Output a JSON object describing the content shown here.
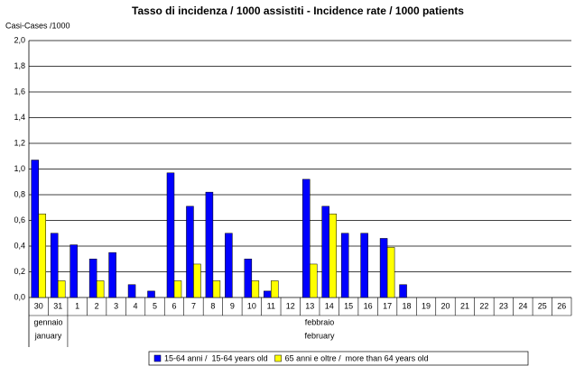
{
  "chart_data": {
    "type": "bar",
    "title": "Tasso di incidenza / 1000 assistiti - Incidence rate / 1000 patients",
    "y_label": "Casi-Cases /1000",
    "categories": [
      "30",
      "31",
      "1",
      "2",
      "3",
      "4",
      "5",
      "6",
      "7",
      "8",
      "9",
      "10",
      "11",
      "12",
      "13",
      "14",
      "15",
      "16",
      "17",
      "18",
      "19",
      "20",
      "21",
      "22",
      "23",
      "24",
      "25",
      "26"
    ],
    "month_labels": [
      [
        "gennaio",
        "january"
      ],
      [
        "febbraio",
        "february"
      ]
    ],
    "series": [
      {
        "name": "15-64 anni /  15-64 years old",
        "color": "#0000ff",
        "values": [
          1.07,
          0.5,
          0.41,
          0.3,
          0.35,
          0.1,
          0.05,
          0.97,
          0.71,
          0.82,
          0.5,
          0.3,
          0.05,
          0,
          0.92,
          0.71,
          0.5,
          0.5,
          0.46,
          0.1,
          0,
          0,
          0,
          0,
          0,
          0,
          0,
          0
        ]
      },
      {
        "name": "65 anni e oltre /  more than 64 years old",
        "color": "#ffff00",
        "values": [
          0.65,
          0.13,
          0,
          0.13,
          0,
          0,
          0,
          0.13,
          0.26,
          0.13,
          0,
          0.13,
          0.13,
          0,
          0.26,
          0.65,
          0,
          0,
          0.39,
          0,
          0,
          0,
          0,
          0,
          0,
          0,
          0,
          0
        ]
      }
    ],
    "ylim": [
      0,
      2
    ],
    "yticks": [
      {
        "value": 0,
        "label": "0,0"
      },
      {
        "value": 0.2,
        "label": "0,2"
      },
      {
        "value": 0.4,
        "label": "0,4"
      },
      {
        "value": 0.6,
        "label": "0,6"
      },
      {
        "value": 0.8,
        "label": "0,8"
      },
      {
        "value": 1,
        "label": "1,0"
      },
      {
        "value": 1.2,
        "label": "1,2"
      },
      {
        "value": 1.4,
        "label": "1,4"
      },
      {
        "value": 1.6,
        "label": "1,6"
      },
      {
        "value": 1.8,
        "label": "1,8"
      },
      {
        "value": 2,
        "label": "2,0"
      }
    ],
    "grid": true,
    "legend": "bottom"
  }
}
